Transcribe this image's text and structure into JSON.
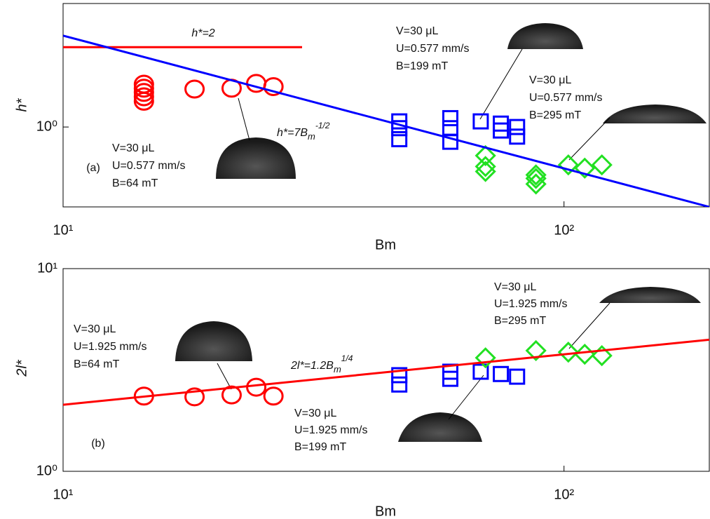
{
  "chart_data": [
    {
      "type": "scatter",
      "panel_label": "(a)",
      "x_label": "Bm",
      "y_label": "h*",
      "log_x": true,
      "log_y": true,
      "xlim": [
        10,
        195
      ],
      "ylim": [
        0.5,
        2.92
      ],
      "xticks": [
        {
          "value": 10,
          "label": "10¹"
        },
        {
          "value": 100,
          "label": "10²"
        }
      ],
      "yticks": [
        {
          "value": 1,
          "label": "10⁰"
        }
      ],
      "series": [
        {
          "marker": "circle",
          "color": "#ff0000",
          "x": [
            14.5,
            14.5,
            14.5,
            14.5,
            14.5,
            18.3,
            21.7,
            24.3,
            26.3
          ],
          "values": [
            1.25,
            1.3,
            1.35,
            1.4,
            1.45,
            1.39,
            1.4,
            1.46,
            1.42
          ]
        },
        {
          "marker": "square",
          "color": "#0000ff",
          "x": [
            46.9,
            46.9,
            46.9,
            59.3,
            59.3,
            59.3,
            68.2,
            74.8,
            74.8,
            80.6,
            80.6
          ],
          "values": [
            1.05,
            0.99,
            0.9,
            1.08,
            0.99,
            0.88,
            1.05,
            1.03,
            0.97,
            1.0,
            0.92
          ]
        },
        {
          "marker": "diamond",
          "color": "#22e022",
          "x": [
            69.7,
            69.7,
            69.7,
            87.9,
            87.9,
            87.9,
            102,
            110,
            119
          ],
          "values": [
            0.78,
            0.71,
            0.68,
            0.66,
            0.64,
            0.61,
            0.72,
            0.7,
            0.72
          ]
        },
        {
          "marker": "line",
          "color": "#ff0000",
          "x": [
            10,
            30
          ],
          "values": [
            2,
            2
          ]
        },
        {
          "marker": "line",
          "color": "#0000ff",
          "x": [
            10,
            195
          ],
          "values": [
            2.21,
            0.5
          ]
        }
      ],
      "line_label": "h*=2",
      "equation": {
        "base": "h*=7B",
        "sub": "m",
        "sup": "-1/2"
      },
      "notes": [
        [
          "V=30 μL",
          "U=0.577 mm/s",
          "B=64 mT"
        ],
        [
          "V=30 μL",
          "U=0.577 mm/s",
          "B=199 mT"
        ],
        [
          "V=30 μL",
          "U=0.577 mm/s",
          "B=295 mT"
        ]
      ]
    },
    {
      "type": "scatter",
      "panel_label": "(b)",
      "x_label": "Bm",
      "y_label": "2l*",
      "log_x": true,
      "log_y": true,
      "xlim": [
        10,
        195
      ],
      "ylim": [
        1,
        10
      ],
      "xticks": [
        {
          "value": 10,
          "label": "10¹"
        },
        {
          "value": 100,
          "label": "10²"
        }
      ],
      "yticks": [
        {
          "value": 1,
          "label": "10⁰"
        },
        {
          "value": 10,
          "label": "10¹"
        }
      ],
      "series": [
        {
          "marker": "circle",
          "color": "#ff0000",
          "x": [
            14.5,
            18.3,
            21.7,
            24.3,
            26.3
          ],
          "values": [
            2.35,
            2.33,
            2.38,
            2.6,
            2.35
          ]
        },
        {
          "marker": "square",
          "color": "#0000ff",
          "x": [
            46.9,
            46.9,
            59.3,
            59.3,
            68.2,
            74.8,
            80.6
          ],
          "values": [
            2.98,
            2.68,
            3.1,
            2.86,
            3.1,
            3.02,
            2.93
          ]
        },
        {
          "marker": "diamond",
          "color": "#22e022",
          "x": [
            69.7,
            87.9,
            102,
            110,
            119
          ],
          "values": [
            3.63,
            3.94,
            3.87,
            3.78,
            3.72
          ]
        },
        {
          "marker": "line",
          "color": "#ff0000",
          "x": [
            10,
            195
          ],
          "values": [
            2.13,
            4.46
          ]
        }
      ],
      "equation": {
        "base": "2l*=1.2B",
        "sub": "m",
        "sup": "1/4"
      },
      "notes": [
        [
          "V=30 μL",
          "U=1.925 mm/s",
          "B=64 mT"
        ],
        [
          "V=30 μL",
          "U=1.925 mm/s",
          "B=199 mT"
        ],
        [
          "V=30 μL",
          "U=1.925 mm/s",
          "B=295 mT"
        ]
      ]
    }
  ]
}
